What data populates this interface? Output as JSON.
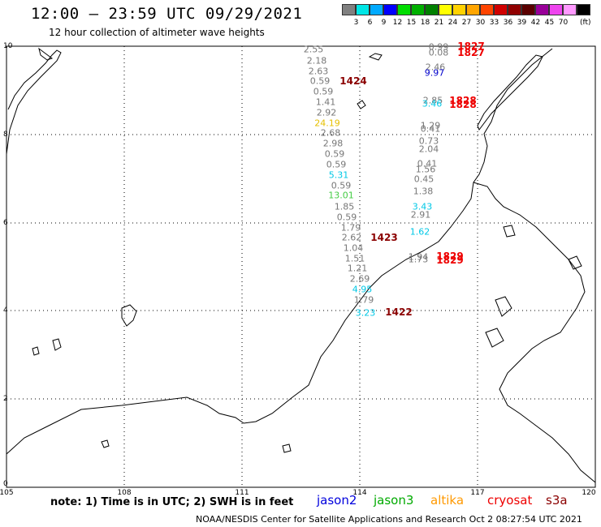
{
  "header": {
    "title": "12:00 — 23:59 UTC 09/29/2021",
    "subtitle": "12 hour collection of altimeter wave heights"
  },
  "scale": {
    "colors": [
      "#808080",
      "#00e6e6",
      "#00aaff",
      "#0000ff",
      "#00dd00",
      "#00b000",
      "#008000",
      "#ffff00",
      "#ffd200",
      "#ffa500",
      "#ff4500",
      "#d00000",
      "#900000",
      "#5a0000",
      "#990099",
      "#ee44ee",
      "#ff99ff",
      "#000000"
    ],
    "labels": [
      "3",
      "6",
      "9",
      "12",
      "15",
      "18",
      "21",
      "24",
      "27",
      "30",
      "33",
      "36",
      "39",
      "42",
      "45",
      "70"
    ],
    "unit": "(ft)"
  },
  "axes": {
    "yticks": [
      "10",
      "8",
      "6",
      "4",
      "2",
      "0"
    ],
    "xticks": [
      "105",
      "108",
      "111",
      "114",
      "117",
      "120"
    ]
  },
  "observations": [
    {
      "v": "2.55",
      "c": "#777777"
    },
    {
      "v": "2.18",
      "c": "#777777"
    },
    {
      "v": "2.63",
      "c": "#777777"
    },
    {
      "v": "0.59",
      "c": "#777777"
    },
    {
      "v": "0.59",
      "c": "#777777"
    },
    {
      "v": "1.41",
      "c": "#777777"
    },
    {
      "v": "2.92",
      "c": "#777777"
    },
    {
      "v": "24.19",
      "c": "#e6c000"
    },
    {
      "v": "2.68",
      "c": "#777777"
    },
    {
      "v": "2.98",
      "c": "#777777"
    },
    {
      "v": "0.59",
      "c": "#777777"
    },
    {
      "v": "0.59",
      "c": "#777777"
    },
    {
      "v": "5.31",
      "c": "#00c8e6"
    },
    {
      "v": "0.59",
      "c": "#777777"
    },
    {
      "v": "13.01",
      "c": "#44cc44"
    },
    {
      "v": "1.85",
      "c": "#777777"
    },
    {
      "v": "0.59",
      "c": "#777777"
    },
    {
      "v": "1.79",
      "c": "#777777"
    },
    {
      "v": "2.62",
      "c": "#777777"
    },
    {
      "v": "1.04",
      "c": "#777777"
    },
    {
      "v": "1.51",
      "c": "#777777"
    },
    {
      "v": "1.21",
      "c": "#777777"
    },
    {
      "v": "2.69",
      "c": "#777777"
    },
    {
      "v": "4.95",
      "c": "#00c8e6"
    },
    {
      "v": "1.79",
      "c": "#777777"
    },
    {
      "v": "3.23",
      "c": "#00c8e6"
    },
    {
      "v": "0.99",
      "c": "#777777"
    },
    {
      "v": "0.08",
      "c": "#777777"
    },
    {
      "v": "2.46",
      "c": "#777777"
    },
    {
      "v": "9.97",
      "c": "#0000cc"
    },
    {
      "v": "2.85",
      "c": "#777777"
    },
    {
      "v": "3.46",
      "c": "#00c8e6"
    },
    {
      "v": "1.29",
      "c": "#777777"
    },
    {
      "v": "0.41",
      "c": "#777777"
    },
    {
      "v": "0.73",
      "c": "#777777"
    },
    {
      "v": "2.04",
      "c": "#777777"
    },
    {
      "v": "0.41",
      "c": "#777777"
    },
    {
      "v": "1.56",
      "c": "#777777"
    },
    {
      "v": "0.45",
      "c": "#777777"
    },
    {
      "v": "1.38",
      "c": "#777777"
    },
    {
      "v": "3.43",
      "c": "#00c8e6"
    },
    {
      "v": "2.91",
      "c": "#777777"
    },
    {
      "v": "1.62",
      "c": "#00c8e6"
    },
    {
      "v": "1.94",
      "c": "#777777"
    },
    {
      "v": "1.73",
      "c": "#777777"
    }
  ],
  "pass_times": [
    {
      "t": "1424",
      "c": "#8b0000"
    },
    {
      "t": "1423",
      "c": "#8b0000"
    },
    {
      "t": "1422",
      "c": "#8b0000"
    },
    {
      "t": "1827",
      "c": "#ee0000"
    },
    {
      "t": "1827",
      "c": "#ee0000"
    },
    {
      "t": "1828",
      "c": "#ee0000"
    },
    {
      "t": "1828",
      "c": "#ee0000"
    },
    {
      "t": "1829",
      "c": "#ee0000"
    },
    {
      "t": "1829",
      "c": "#ee0000"
    }
  ],
  "note": "note:  1) Time is in UTC;  2) SWH is in feet",
  "legend": [
    {
      "label": "jason2",
      "color": "#0000dd"
    },
    {
      "label": "jason3",
      "color": "#00aa00"
    },
    {
      "label": "altika",
      "color": "#ff9900"
    },
    {
      "label": "cryosat",
      "color": "#ee0000"
    },
    {
      "label": "s3a",
      "color": "#8b0000"
    }
  ],
  "credit": "NOAA/NESDIS Center for Satellite Applications and Research    Oct  2 08:27:54 UTC 2021"
}
